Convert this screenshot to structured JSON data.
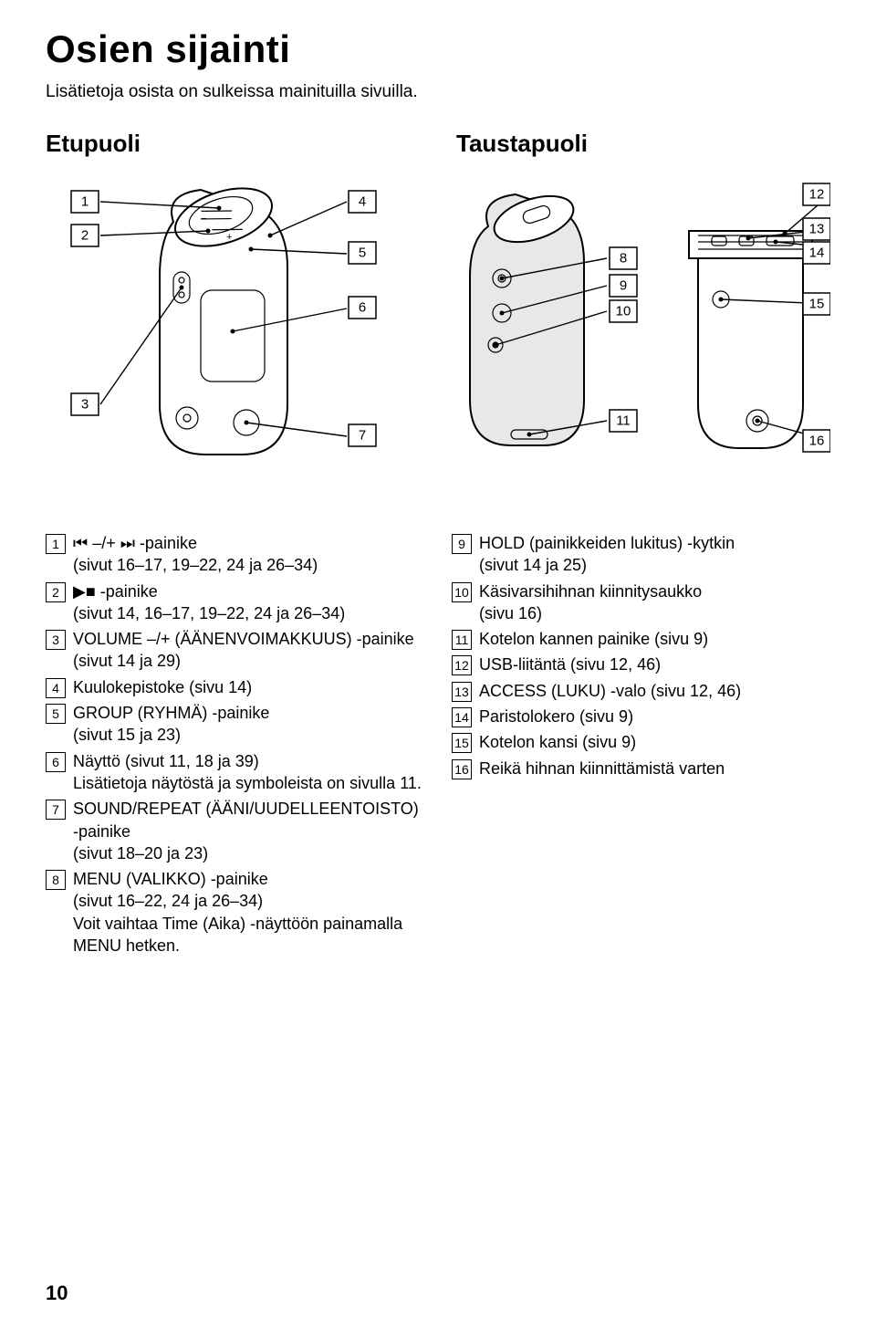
{
  "title": "Osien sijainti",
  "subtitle": "Lisätietoja osista on sulkeissa mainituilla sivuilla.",
  "headings": {
    "front": "Etupuoli",
    "rear": "Taustapuoli"
  },
  "diagram": {
    "front": {
      "callouts_left": [
        "1",
        "2",
        "3"
      ],
      "callouts_right": [
        "4",
        "5",
        "6",
        "7"
      ]
    },
    "rear": {
      "callouts_mid": [
        "8",
        "9",
        "10",
        "11"
      ],
      "callouts_right": [
        "12",
        "13",
        "14",
        "15",
        "16"
      ]
    },
    "stroke": "#000000",
    "fill_body": "#ffffff",
    "fill_shadow": "#e8e8e8"
  },
  "left_items": [
    {
      "n": "1",
      "sym": "⏮ –/+ ⏭",
      "label": " -painike",
      "sub": "(sivut 16–17, 19–22, 24 ja 26–34)"
    },
    {
      "n": "2",
      "sym": "▶■",
      "label": "-painike",
      "sub": "(sivut 14, 16–17, 19–22, 24 ja 26–34)"
    },
    {
      "n": "3",
      "label": "VOLUME –/+ (ÄÄNENVOIMAKKUUS) -painike",
      "sub": "(sivut 14 ja 29)"
    },
    {
      "n": "4",
      "label": "Kuulokepistoke (sivu 14)"
    },
    {
      "n": "5",
      "label": "GROUP (RYHMÄ) -painike",
      "sub": "(sivut 15 ja 23)"
    },
    {
      "n": "6",
      "label": "Näyttö (sivut 11, 18 ja 39)",
      "sub": "Lisätietoja näytöstä ja symboleista on sivulla 11."
    },
    {
      "n": "7",
      "label": "SOUND/REPEAT (ÄÄNI/UUDELLEENTOISTO) -painike",
      "sub": "(sivut 18–20 ja 23)"
    },
    {
      "n": "8",
      "label": "MENU (VALIKKO) -painike",
      "sub": "(sivut 16–22, 24 ja 26–34)",
      "sub2": "Voit vaihtaa Time (Aika) -näyttöön painamalla MENU hetken."
    }
  ],
  "right_items": [
    {
      "n": "9",
      "label": "HOLD (painikkeiden lukitus) -kytkin",
      "sub": "(sivut 14 ja 25)"
    },
    {
      "n": "10",
      "label": "Käsivarsihihnan kiinnitysaukko",
      "sub": "(sivu 16)"
    },
    {
      "n": "11",
      "label": "Kotelon kannen painike (sivu 9)"
    },
    {
      "n": "12",
      "label": "USB-liitäntä (sivu 12, 46)"
    },
    {
      "n": "13",
      "label": "ACCESS (LUKU) -valo (sivu 12, 46)"
    },
    {
      "n": "14",
      "label": "Paristolokero (sivu 9)"
    },
    {
      "n": "15",
      "label": "Kotelon kansi (sivu 9)"
    },
    {
      "n": "16",
      "label": "Reikä hihnan kiinnittämistä varten"
    }
  ],
  "page_number": "10"
}
